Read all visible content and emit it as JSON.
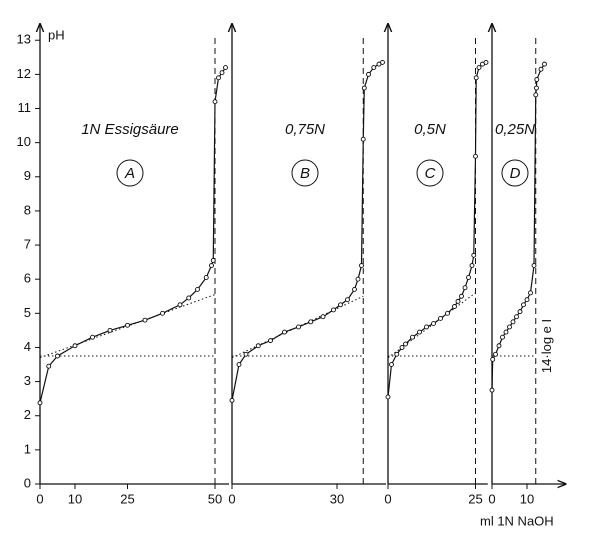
{
  "chart_data": [
    {
      "type": "line",
      "label": "1N Essigsäure",
      "panel": "A",
      "ylabel": "pH",
      "xlim": [
        0,
        54
      ],
      "xticks": [
        0,
        10,
        25,
        50
      ],
      "ylim": [
        0,
        13.3
      ],
      "yticks": [
        0,
        1,
        2,
        3,
        4,
        5,
        6,
        7,
        8,
        9,
        10,
        11,
        12,
        13
      ],
      "x": [
        0,
        2.5,
        5,
        10,
        15,
        20,
        25,
        30,
        35,
        40,
        42.5,
        45,
        47.5,
        49,
        49.5,
        50,
        51,
        52,
        53
      ],
      "values": [
        2.38,
        3.45,
        3.75,
        4.05,
        4.3,
        4.5,
        4.65,
        4.8,
        5.0,
        5.25,
        5.45,
        5.7,
        6.05,
        6.4,
        6.55,
        11.2,
        11.9,
        12.05,
        12.2
      ],
      "color": "#111",
      "vline": 50,
      "hline": 3.75,
      "tangent": {
        "x": [
          0,
          50
        ],
        "y": [
          3.7,
          5.55
        ]
      }
    },
    {
      "type": "line",
      "label": "0,75N",
      "panel": "B",
      "xlim": [
        0,
        44
      ],
      "xticks": [
        0,
        30
      ],
      "ylim": [
        0,
        13.3
      ],
      "x": [
        0,
        2,
        4,
        7.5,
        11,
        15,
        19,
        22.5,
        26,
        29,
        31,
        33,
        35,
        36,
        37,
        37.5,
        37.8,
        39,
        40.5,
        42,
        43
      ],
      "values": [
        2.45,
        3.5,
        3.8,
        4.05,
        4.2,
        4.45,
        4.6,
        4.75,
        4.9,
        5.1,
        5.25,
        5.4,
        5.7,
        6.0,
        6.4,
        10.1,
        11.6,
        12.0,
        12.2,
        12.3,
        12.35
      ],
      "color": "#111",
      "vline": 37.5,
      "hline": 3.75,
      "tangent": {
        "x": [
          0,
          37.5
        ],
        "y": [
          3.7,
          5.5
        ]
      }
    },
    {
      "type": "line",
      "label": "0,5N",
      "panel": "C",
      "xlim": [
        0,
        28.5
      ],
      "xticks": [
        0,
        25
      ],
      "ylim": [
        0,
        13.3
      ],
      "x": [
        0,
        1,
        2.5,
        4,
        5,
        7,
        9,
        11,
        13,
        15,
        17,
        19,
        20,
        21,
        22,
        23,
        24,
        24.5,
        25,
        25.2,
        26,
        27,
        28
      ],
      "values": [
        2.55,
        3.5,
        3.8,
        4.0,
        4.1,
        4.3,
        4.45,
        4.6,
        4.7,
        4.85,
        5.0,
        5.2,
        5.35,
        5.5,
        5.75,
        6.05,
        6.4,
        6.7,
        9.6,
        11.9,
        12.2,
        12.3,
        12.35
      ],
      "color": "#111",
      "vline": 25,
      "hline": 3.75,
      "tangent": {
        "x": [
          0,
          25
        ],
        "y": [
          3.7,
          5.6
        ]
      }
    },
    {
      "type": "line",
      "label": "0,25N",
      "panel": "D",
      "xlabel": "ml 1N NaOH",
      "annotation": "14·log e I",
      "xlim": [
        0,
        21
      ],
      "xticks": [
        0,
        10
      ],
      "ylim": [
        0,
        13.3
      ],
      "x": [
        0,
        0.2,
        1,
        2,
        3,
        4,
        5,
        6,
        7,
        8,
        9,
        10,
        11,
        12,
        12.5,
        12.7,
        12.8,
        14,
        15
      ],
      "values": [
        2.75,
        3.65,
        3.8,
        4.05,
        4.3,
        4.45,
        4.6,
        4.75,
        4.9,
        5.05,
        5.25,
        5.4,
        5.6,
        6.4,
        11.4,
        11.6,
        11.85,
        12.15,
        12.3
      ],
      "color": "#111",
      "vline": 12.5,
      "hline": 3.75
    }
  ]
}
